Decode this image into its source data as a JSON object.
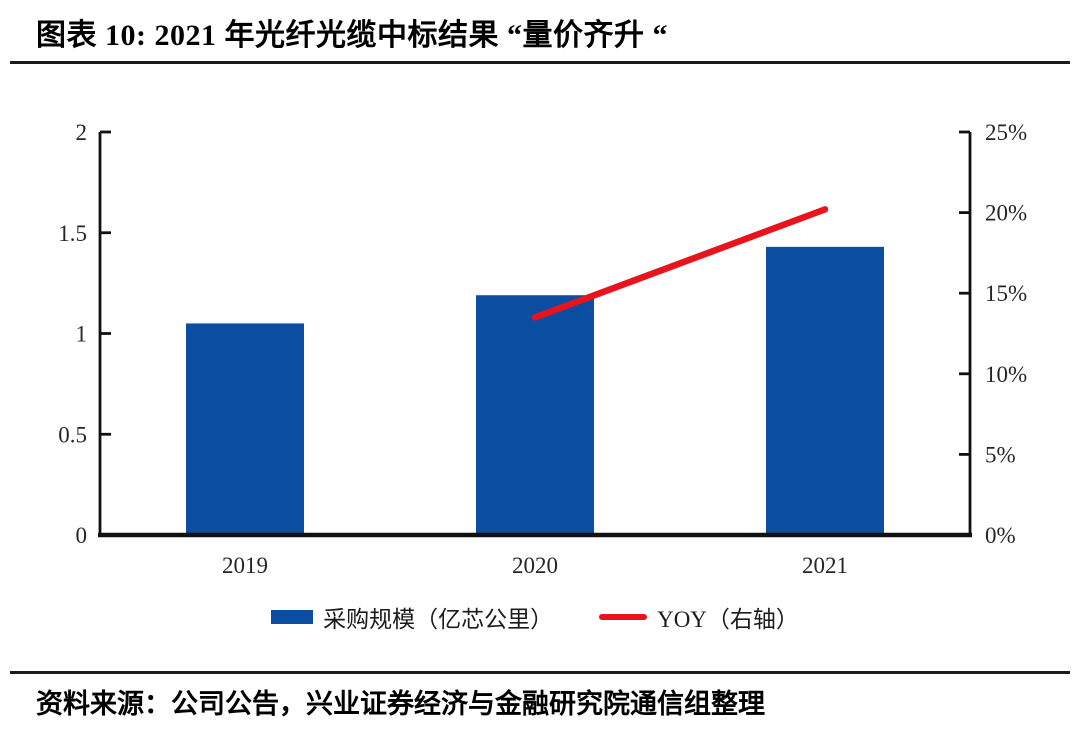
{
  "header": {
    "title": "图表 10:  2021 年光纤光缆中标结果  “量价齐升 “"
  },
  "legend": {
    "bar_label": "采购规模（亿芯公里）",
    "line_label": "YOY（右轴）"
  },
  "footer": {
    "source": "资料来源：公司公告，兴业证券经济与金融研究院通信组整理"
  },
  "colors": {
    "bar": "#0B4EA1",
    "line": "#E8131C",
    "axis": "#111111",
    "tick_text": "#262626"
  },
  "chart_data": {
    "type": "bar",
    "title": "2021 年光纤光缆中标结果 “量价齐升“",
    "categories": [
      "2019",
      "2020",
      "2021"
    ],
    "series": [
      {
        "name": "采购规模（亿芯公里）",
        "type": "bar",
        "axis": "left",
        "values": [
          1.05,
          1.19,
          1.43
        ]
      },
      {
        "name": "YOY（右轴）",
        "type": "line",
        "axis": "right",
        "values": [
          null,
          13.5,
          20.2
        ]
      }
    ],
    "left_axis": {
      "min": 0,
      "max": 2,
      "tick_labels": [
        "0",
        "0.5",
        "1",
        "1.5",
        "2"
      ]
    },
    "right_axis": {
      "min": 0,
      "max": 25,
      "tick_labels": [
        "0%",
        "5%",
        "10%",
        "15%",
        "20%",
        "25%"
      ]
    },
    "grid": false,
    "legend_position": "bottom"
  }
}
